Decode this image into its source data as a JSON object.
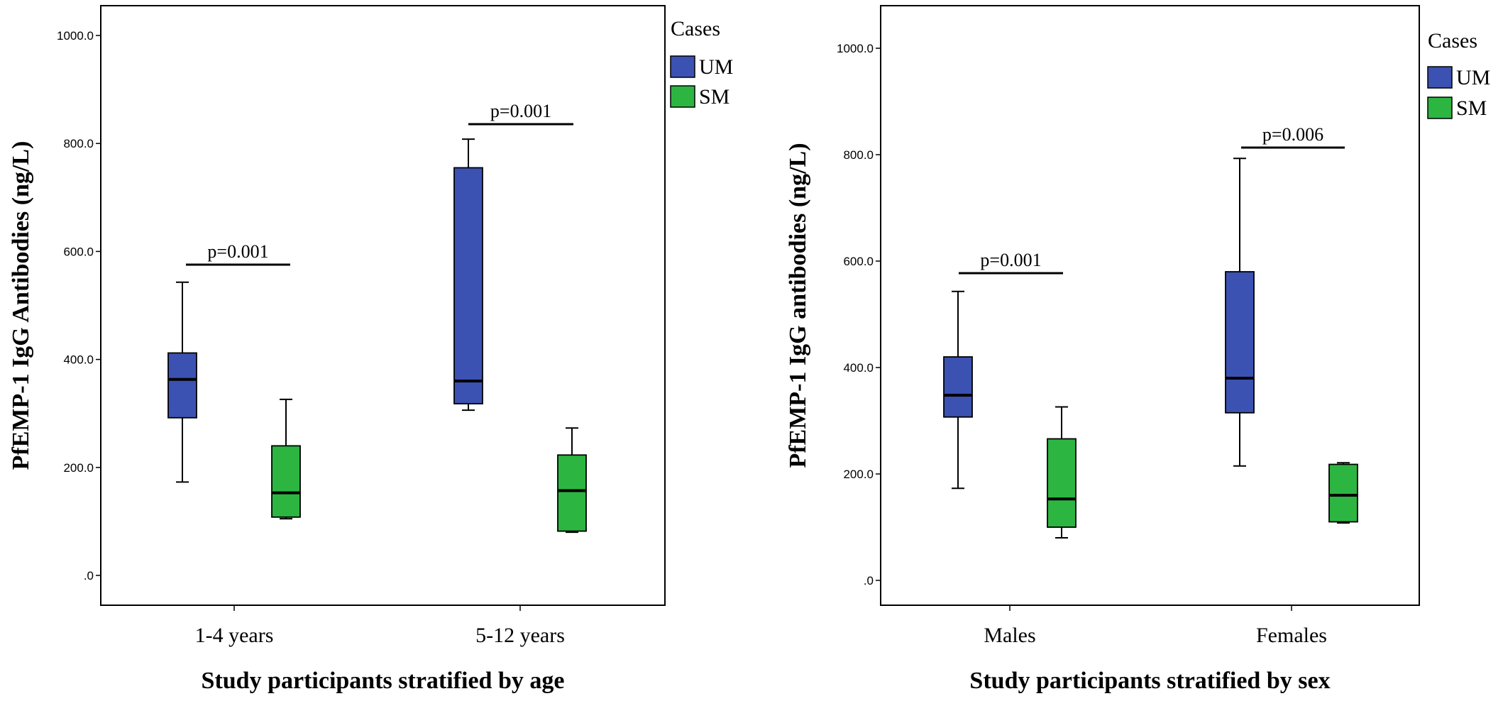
{
  "chart_data": [
    {
      "type": "boxplot",
      "ylabel": "PfEMP-1 IgG Antibodies (ng/L)",
      "xlabel": "Study participants stratified by age",
      "yticks": [
        ".0",
        "200.0",
        "400.0",
        "600.0",
        "800.0",
        "1000.0"
      ],
      "ylim": [
        -50,
        1050
      ],
      "categories": [
        "1-4 years",
        "5-12 years"
      ],
      "legend": {
        "title": "Cases",
        "position": "right",
        "entries": [
          "UM",
          "SM"
        ]
      },
      "series": [
        {
          "name": "UM",
          "color": "#3b52b2",
          "boxes": [
            {
              "min": 173,
              "q1": 292,
              "median": 363,
              "q3": 412,
              "max": 543
            },
            {
              "min": 306,
              "q1": 318,
              "median": 360,
              "q3": 755,
              "max": 808
            }
          ]
        },
        {
          "name": "SM",
          "color": "#2db542",
          "boxes": [
            {
              "min": 105,
              "q1": 108,
              "median": 153,
              "q3": 240,
              "max": 326
            },
            {
              "min": 80,
              "q1": 82,
              "median": 157,
              "q3": 223,
              "max": 273
            }
          ]
        }
      ],
      "annotations": [
        "p=0.001",
        "p=0.001"
      ]
    },
    {
      "type": "boxplot",
      "ylabel": "PfEMP-1 IgG antibodies (ng/L)",
      "xlabel": "Study participants stratified by sex",
      "yticks": [
        ".0",
        "200.0",
        "400.0",
        "600.0",
        "800.0",
        "1000.0"
      ],
      "ylim": [
        -50,
        1050
      ],
      "categories": [
        "Males",
        "Females"
      ],
      "legend": {
        "title": "Cases",
        "position": "right",
        "entries": [
          "UM",
          "SM"
        ]
      },
      "series": [
        {
          "name": "UM",
          "color": "#3b52b2",
          "boxes": [
            {
              "min": 173,
              "q1": 307,
              "median": 348,
              "q3": 420,
              "max": 543
            },
            {
              "min": 215,
              "q1": 315,
              "median": 380,
              "q3": 580,
              "max": 793
            }
          ]
        },
        {
          "name": "SM",
          "color": "#2db542",
          "boxes": [
            {
              "min": 80,
              "q1": 100,
              "median": 153,
              "q3": 266,
              "max": 326
            },
            {
              "min": 108,
              "q1": 110,
              "median": 160,
              "q3": 218,
              "max": 221
            }
          ]
        }
      ],
      "annotations": [
        "p=0.001",
        "p=0.006"
      ]
    }
  ]
}
